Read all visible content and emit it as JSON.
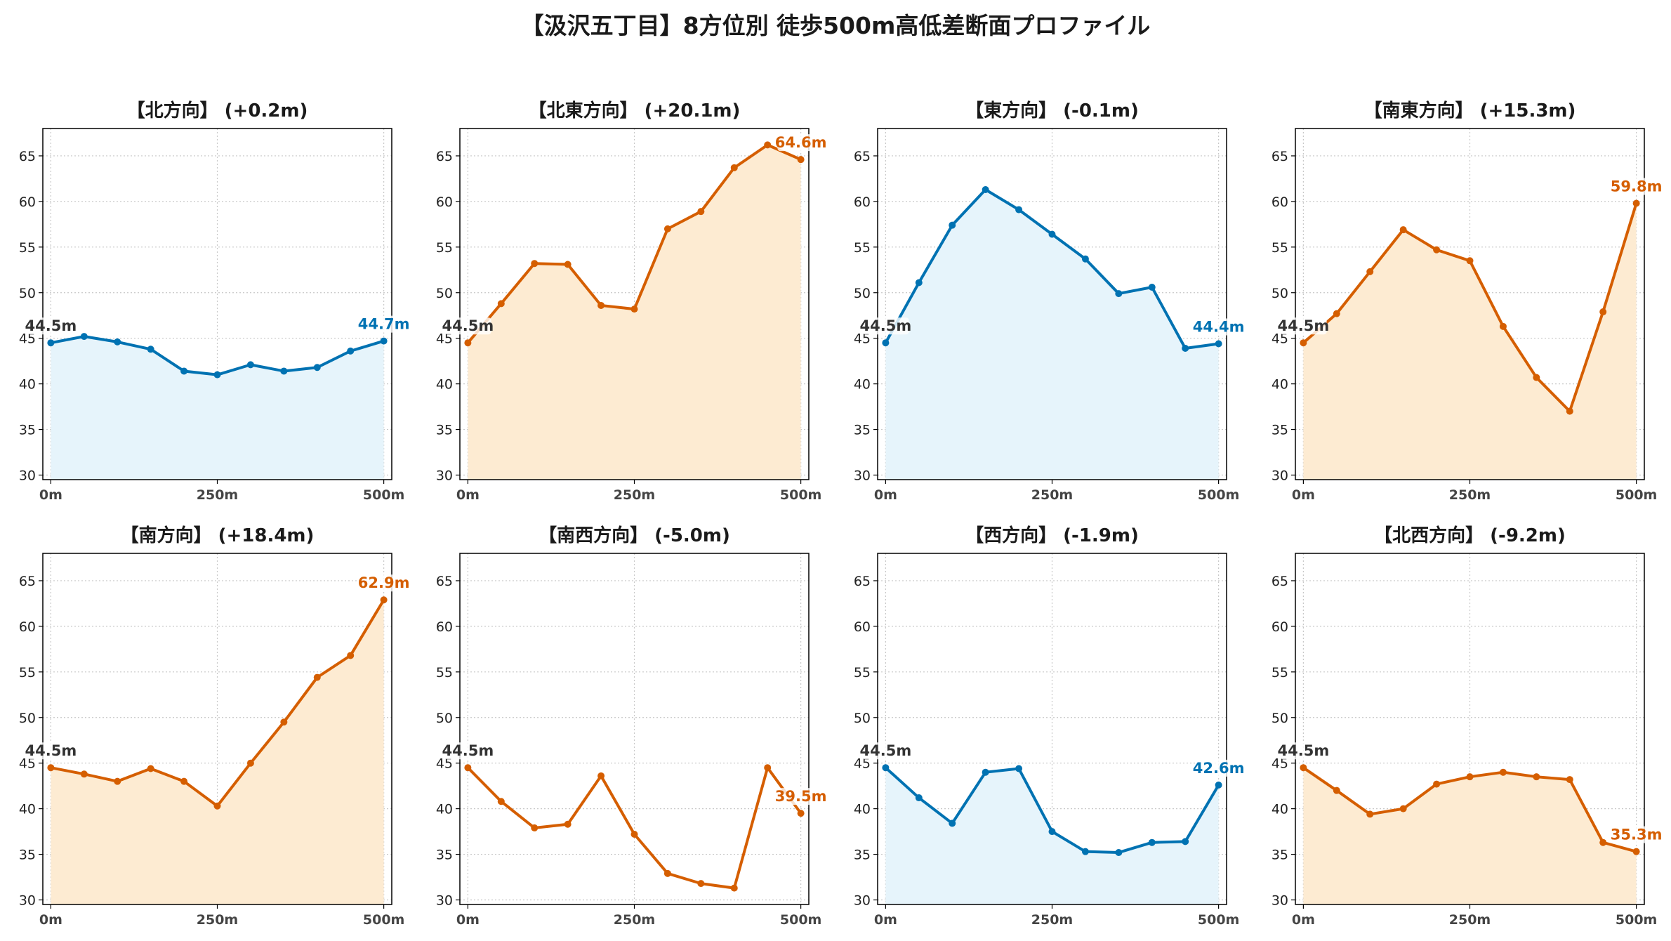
{
  "title": "【汲沢五丁目】8方位別 徒歩500m高低差断面プロファイル",
  "colors": {
    "down": "#0072B2",
    "up": "#D55E00",
    "fill_down": "#E6F4FB",
    "fill_up": "#FDEBD2",
    "start_label": "#333333"
  },
  "chart_data": [
    {
      "type": "area",
      "title": "【北方向】 (+0.2m)",
      "x": [
        0,
        50,
        100,
        150,
        200,
        250,
        300,
        350,
        400,
        450,
        500
      ],
      "values": [
        44.5,
        45.2,
        44.6,
        43.8,
        41.4,
        41.0,
        42.1,
        41.4,
        41.8,
        43.6,
        44.7
      ],
      "xticks": [
        "0m",
        "250m",
        "500m"
      ],
      "yticks": [
        30,
        35,
        40,
        45,
        50,
        55,
        60,
        65
      ],
      "ylim": [
        29.5,
        68
      ],
      "xlim": [
        -12,
        512
      ],
      "grid": true,
      "trend": "down",
      "start_label": "44.5m",
      "end_label": "44.7m"
    },
    {
      "type": "area",
      "title": "【北東方向】 (+20.1m)",
      "x": [
        0,
        50,
        100,
        150,
        200,
        250,
        300,
        350,
        400,
        450,
        500
      ],
      "values": [
        44.5,
        48.8,
        53.2,
        53.1,
        48.6,
        48.2,
        57.0,
        58.9,
        63.7,
        66.2,
        64.6
      ],
      "xticks": [
        "0m",
        "250m",
        "500m"
      ],
      "yticks": [
        30,
        35,
        40,
        45,
        50,
        55,
        60,
        65
      ],
      "ylim": [
        29.5,
        68
      ],
      "xlim": [
        -12,
        512
      ],
      "grid": true,
      "trend": "up",
      "start_label": "44.5m",
      "end_label": "64.6m"
    },
    {
      "type": "area",
      "title": "【東方向】 (-0.1m)",
      "x": [
        0,
        50,
        100,
        150,
        200,
        250,
        300,
        350,
        400,
        450,
        500
      ],
      "values": [
        44.5,
        51.1,
        57.4,
        61.3,
        59.1,
        56.4,
        53.7,
        49.9,
        50.6,
        43.9,
        44.4
      ],
      "xticks": [
        "0m",
        "250m",
        "500m"
      ],
      "yticks": [
        30,
        35,
        40,
        45,
        50,
        55,
        60,
        65
      ],
      "ylim": [
        29.5,
        68
      ],
      "xlim": [
        -12,
        512
      ],
      "grid": true,
      "trend": "down",
      "start_label": "44.5m",
      "end_label": "44.4m"
    },
    {
      "type": "area",
      "title": "【南東方向】 (+15.3m)",
      "x": [
        0,
        50,
        100,
        150,
        200,
        250,
        300,
        350,
        400,
        450,
        500
      ],
      "values": [
        44.5,
        47.7,
        52.3,
        56.9,
        54.7,
        53.5,
        46.3,
        40.7,
        37.0,
        47.9,
        59.8
      ],
      "xticks": [
        "0m",
        "250m",
        "500m"
      ],
      "yticks": [
        30,
        35,
        40,
        45,
        50,
        55,
        60,
        65
      ],
      "ylim": [
        29.5,
        68
      ],
      "xlim": [
        -12,
        512
      ],
      "grid": true,
      "trend": "up",
      "start_label": "44.5m",
      "end_label": "59.8m"
    },
    {
      "type": "area",
      "title": "【南方向】 (+18.4m)",
      "x": [
        0,
        50,
        100,
        150,
        200,
        250,
        300,
        350,
        400,
        450,
        500
      ],
      "values": [
        44.5,
        43.8,
        43.0,
        44.4,
        43.0,
        40.3,
        45.0,
        49.5,
        54.4,
        56.8,
        62.9
      ],
      "xticks": [
        "0m",
        "250m",
        "500m"
      ],
      "yticks": [
        30,
        35,
        40,
        45,
        50,
        55,
        60,
        65
      ],
      "ylim": [
        29.5,
        68
      ],
      "xlim": [
        -12,
        512
      ],
      "grid": true,
      "trend": "up",
      "start_label": "44.5m",
      "end_label": "62.9m"
    },
    {
      "type": "line",
      "title": "【南西方向】 (-5.0m)",
      "x": [
        0,
        50,
        100,
        150,
        200,
        250,
        300,
        350,
        400,
        450,
        500
      ],
      "values": [
        44.5,
        40.8,
        37.9,
        38.3,
        43.6,
        37.2,
        32.9,
        31.8,
        31.3,
        44.5,
        39.5
      ],
      "xticks": [
        "0m",
        "250m",
        "500m"
      ],
      "yticks": [
        30,
        35,
        40,
        45,
        50,
        55,
        60,
        65
      ],
      "ylim": [
        29.5,
        68
      ],
      "xlim": [
        -12,
        512
      ],
      "grid": true,
      "trend": "up",
      "fill": false,
      "start_label": "44.5m",
      "end_label": "39.5m"
    },
    {
      "type": "area",
      "title": "【西方向】 (-1.9m)",
      "x": [
        0,
        50,
        100,
        150,
        200,
        250,
        300,
        350,
        400,
        450,
        500
      ],
      "values": [
        44.5,
        41.2,
        38.4,
        44.0,
        44.4,
        37.5,
        35.3,
        35.2,
        36.3,
        36.4,
        42.6
      ],
      "xticks": [
        "0m",
        "250m",
        "500m"
      ],
      "yticks": [
        30,
        35,
        40,
        45,
        50,
        55,
        60,
        65
      ],
      "ylim": [
        29.5,
        68
      ],
      "xlim": [
        -12,
        512
      ],
      "grid": true,
      "trend": "down",
      "start_label": "44.5m",
      "end_label": "42.6m"
    },
    {
      "type": "area",
      "title": "【北西方向】 (-9.2m)",
      "x": [
        0,
        50,
        100,
        150,
        200,
        250,
        300,
        350,
        400,
        450,
        500
      ],
      "values": [
        44.5,
        42.0,
        39.4,
        40.0,
        42.7,
        43.5,
        44.0,
        43.5,
        43.2,
        36.3,
        35.3
      ],
      "xticks": [
        "0m",
        "250m",
        "500m"
      ],
      "yticks": [
        30,
        35,
        40,
        45,
        50,
        55,
        60,
        65
      ],
      "ylim": [
        29.5,
        68
      ],
      "xlim": [
        -12,
        512
      ],
      "grid": true,
      "trend": "up",
      "start_label": "44.5m",
      "end_label": "35.3m"
    }
  ]
}
